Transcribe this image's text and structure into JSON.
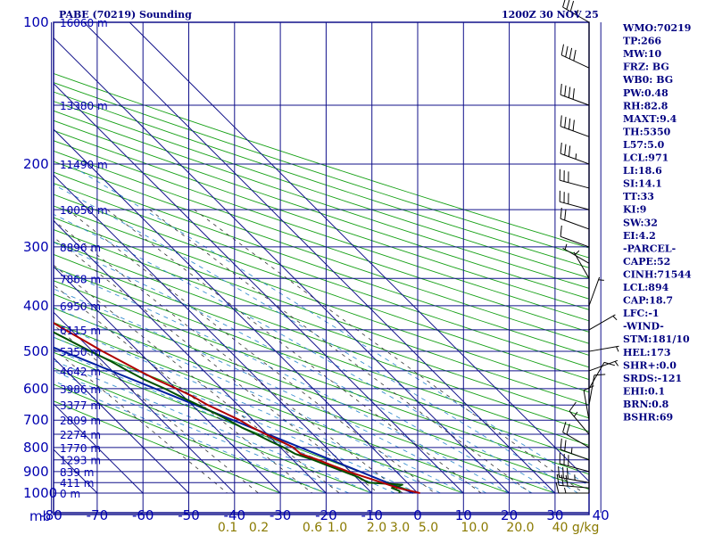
{
  "header": {
    "station": "PABE (70219) Sounding",
    "time": "1200Z 30 NOV 25"
  },
  "chart_data": {
    "type": "line",
    "title": "PABE (70219) Sounding",
    "subtitle": "1200Z 30 NOV 25",
    "xlabel": "mb",
    "xlim": [
      -80,
      40
    ],
    "ylim": [
      1000,
      100
    ],
    "pressure_ticks": [
      "100",
      "200",
      "300",
      "400",
      "500",
      "600",
      "700",
      "800",
      "900",
      "1000"
    ],
    "grid_pressures": [
      100,
      150,
      200,
      250,
      300,
      350,
      400,
      450,
      500,
      550,
      600,
      650,
      700,
      750,
      800,
      850,
      900,
      950,
      1000
    ],
    "temp_ticks": [
      {
        "t": -80,
        "label": "-80"
      },
      {
        "t": -70,
        "label": "-70"
      },
      {
        "t": -60,
        "label": "-60"
      },
      {
        "t": -50,
        "label": "-50"
      },
      {
        "t": -40,
        "label": "-40"
      },
      {
        "t": -30,
        "label": "-30"
      },
      {
        "t": -20,
        "label": "-20"
      },
      {
        "t": -10,
        "label": "-10"
      },
      {
        "t": 0,
        "label": "0"
      },
      {
        "t": 10,
        "label": "10"
      },
      {
        "t": 20,
        "label": "20"
      },
      {
        "t": 30,
        "label": "30"
      },
      {
        "t": 40,
        "label": "40"
      }
    ],
    "height_labels": [
      {
        "p": 100,
        "label": "16060 m"
      },
      {
        "p": 150,
        "label": "13380 m"
      },
      {
        "p": 200,
        "label": "11490 m"
      },
      {
        "p": 250,
        "label": "10050 m"
      },
      {
        "p": 300,
        "label": "8896 m"
      },
      {
        "p": 350,
        "label": "7868 m"
      },
      {
        "p": 400,
        "label": "6950 m"
      },
      {
        "p": 450,
        "label": "6115 m"
      },
      {
        "p": 500,
        "label": "5350 m"
      },
      {
        "p": 550,
        "label": "4642 m"
      },
      {
        "p": 600,
        "label": "3986 m"
      },
      {
        "p": 650,
        "label": "3377 m"
      },
      {
        "p": 700,
        "label": "2809 m"
      },
      {
        "p": 750,
        "label": "2274 m"
      },
      {
        "p": 800,
        "label": "1770 m"
      },
      {
        "p": 850,
        "label": "1293 m"
      },
      {
        "p": 900,
        "label": "839 m"
      },
      {
        "p": 950,
        "label": "411 m"
      },
      {
        "p": 1000,
        "label": "0 m"
      }
    ],
    "mixing_ratio_labels": [
      "0.1",
      "0.2",
      "0.6",
      "1.0",
      "2.0",
      "3.0",
      "5.0",
      "10.0",
      "20.0",
      "40 g/kg"
    ],
    "temperature": {
      "name": "Temperature",
      "color": "#b00000",
      "points": [
        [
          1000,
          0.5
        ],
        [
          975,
          -3.2
        ],
        [
          950,
          -5.5
        ],
        [
          925,
          -8.0
        ],
        [
          900,
          -10.5
        ],
        [
          875,
          -12.5
        ],
        [
          850,
          -14.5
        ],
        [
          825,
          -17.0
        ],
        [
          800,
          -17.2
        ],
        [
          775,
          -18.6
        ],
        [
          750,
          -20.3
        ],
        [
          725,
          -21.8
        ],
        [
          700,
          -22.9
        ],
        [
          675,
          -24.7
        ],
        [
          650,
          -26.6
        ],
        [
          625,
          -27.9
        ],
        [
          600,
          -29.8
        ],
        [
          575,
          -32.2
        ],
        [
          550,
          -34.1
        ],
        [
          525,
          -35.9
        ],
        [
          500,
          -37.8
        ],
        [
          475,
          -39.5
        ],
        [
          450,
          -41.3
        ],
        [
          425,
          -43.1
        ],
        [
          400,
          -45.0
        ],
        [
          375,
          -46.9
        ],
        [
          350,
          -49.4
        ],
        [
          325,
          -51.3
        ],
        [
          300,
          -53.5
        ],
        [
          275,
          -56.3
        ],
        [
          260,
          -58.2
        ],
        [
          250,
          -56.5
        ],
        [
          240,
          -54.5
        ],
        [
          220,
          -52.5
        ],
        [
          200,
          -50.5
        ],
        [
          175,
          -48.5
        ],
        [
          150,
          -47.8
        ],
        [
          125,
          -49.2
        ],
        [
          100,
          -50.3
        ]
      ]
    },
    "dewpoint": {
      "name": "Dew Point",
      "color": "#005000",
      "points": [
        [
          1000,
          -4.0
        ],
        [
          990,
          -3.5
        ],
        [
          975,
          -4.5
        ],
        [
          960,
          -1.5
        ],
        [
          950,
          -8.5
        ],
        [
          925,
          -9.5
        ],
        [
          900,
          -11.5
        ],
        [
          875,
          -13.5
        ],
        [
          850,
          -15.6
        ],
        [
          825,
          -18.2
        ],
        [
          800,
          -19.3
        ],
        [
          775,
          -20.9
        ],
        [
          750,
          -22.4
        ],
        [
          725,
          -24.1
        ],
        [
          700,
          -25.4
        ],
        [
          675,
          -26.9
        ],
        [
          650,
          -28.7
        ],
        [
          625,
          -30.6
        ],
        [
          600,
          -32.4
        ],
        [
          575,
          -34.8
        ],
        [
          550,
          -36.6
        ],
        [
          525,
          -38.2
        ],
        [
          500,
          -40.4
        ],
        [
          475,
          -42.6
        ],
        [
          450,
          -44.9
        ],
        [
          425,
          -46.5
        ],
        [
          400,
          -50.0
        ],
        [
          390,
          -51.5
        ],
        [
          375,
          -53.5
        ],
        [
          365,
          -54.3
        ],
        [
          350,
          -55.0
        ],
        [
          335,
          -57.0
        ],
        [
          320,
          -57.5
        ],
        [
          310,
          -59.0
        ],
        [
          300,
          -60.5
        ],
        [
          285,
          -63.5
        ],
        [
          270,
          -64.5
        ],
        [
          260,
          -66.5
        ],
        [
          250,
          -68.7
        ],
        [
          240,
          -70.0
        ],
        [
          220,
          -72.5
        ],
        [
          200,
          -75.0
        ],
        [
          175,
          -78.5
        ],
        [
          160,
          -80.0
        ]
      ]
    },
    "parcel": {
      "name": "Parcel Path",
      "color": "#0020a0",
      "points": [
        [
          1000,
          -1.0
        ],
        [
          300,
          -80.0
        ]
      ]
    }
  },
  "indices": [
    "WMO:70219",
    "TP:266",
    "MW:10",
    "FRZ: BG",
    "WB0: BG",
    "PW:0.48",
    "RH:82.8",
    "MAXT:9.4",
    "TH:5350",
    "L57:5.0",
    "LCL:971",
    "LI:18.6",
    "SI:14.1",
    "TT:33",
    "KI:9",
    "SW:32",
    "EI:4.2",
    "-PARCEL-",
    "CAPE:52",
    "CINH:71544",
    "LCL:894",
    "CAP:18.7",
    "LFC:-1",
    "-WIND-",
    "STM:181/10",
    "HEL:173",
    "SHR+:0.0",
    "SRDS:-121",
    "EHI:0.1",
    "BRN:0.8",
    "BSHR:69"
  ],
  "wind_profile": [
    {
      "p": 100,
      "dir": 300,
      "spd": 35
    },
    {
      "p": 125,
      "dir": 295,
      "spd": 40
    },
    {
      "p": 150,
      "dir": 290,
      "spd": 40
    },
    {
      "p": 175,
      "dir": 290,
      "spd": 40
    },
    {
      "p": 200,
      "dir": 290,
      "spd": 35
    },
    {
      "p": 225,
      "dir": 285,
      "spd": 30
    },
    {
      "p": 250,
      "dir": 285,
      "spd": 30
    },
    {
      "p": 275,
      "dir": 290,
      "spd": 20
    },
    {
      "p": 300,
      "dir": 290,
      "spd": 10
    },
    {
      "p": 325,
      "dir": 300,
      "spd": 5
    },
    {
      "p": 350,
      "dir": 330,
      "spd": 5
    },
    {
      "p": 400,
      "dir": 20,
      "spd": 5
    },
    {
      "p": 450,
      "dir": 60,
      "spd": 5
    },
    {
      "p": 500,
      "dir": 80,
      "spd": 5
    },
    {
      "p": 550,
      "dir": 70,
      "spd": 5
    },
    {
      "p": 600,
      "dir": 30,
      "spd": 10
    },
    {
      "p": 650,
      "dir": 10,
      "spd": 10
    },
    {
      "p": 700,
      "dir": 350,
      "spd": 10
    },
    {
      "p": 750,
      "dir": 320,
      "spd": 15
    },
    {
      "p": 800,
      "dir": 300,
      "spd": 20
    },
    {
      "p": 850,
      "dir": 290,
      "spd": 25
    },
    {
      "p": 900,
      "dir": 285,
      "spd": 30
    },
    {
      "p": 950,
      "dir": 280,
      "spd": 35
    },
    {
      "p": 975,
      "dir": 275,
      "spd": 30
    },
    {
      "p": 1000,
      "dir": 270,
      "spd": 15
    }
  ]
}
